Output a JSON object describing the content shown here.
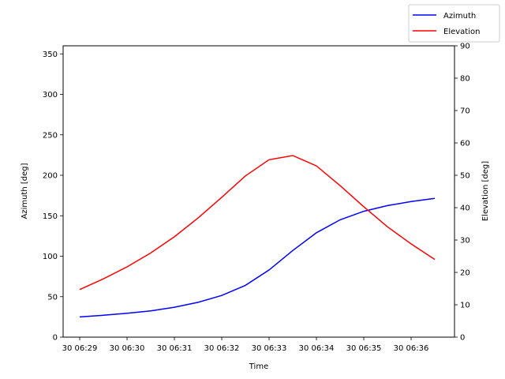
{
  "chart_data": {
    "type": "line",
    "xlabel": "Time",
    "ylabel": "Azimuth [deg]",
    "y2label": "Elevation [deg]",
    "x": [
      "06:29:00",
      "06:29:30",
      "06:30:00",
      "06:30:30",
      "06:31:00",
      "06:31:30",
      "06:32:00",
      "06:32:30",
      "06:33:00",
      "06:33:30",
      "06:34:00",
      "06:34:30",
      "06:35:00",
      "06:35:30",
      "06:36:00",
      "06:36:30"
    ],
    "x_tick_labels": [
      "30 06:29",
      "30 06:30",
      "30 06:31",
      "30 06:32",
      "30 06:33",
      "30 06:34",
      "30 06:35",
      "30 06:36"
    ],
    "ylim": [
      0,
      360
    ],
    "y_ticks": [
      0,
      50,
      100,
      150,
      200,
      250,
      300,
      350
    ],
    "y2lim": [
      0,
      90
    ],
    "y2_ticks": [
      0,
      10,
      20,
      30,
      40,
      50,
      60,
      70,
      80,
      90
    ],
    "grid": false,
    "legend_position": "top-right",
    "series": [
      {
        "name": "Azimuth",
        "axis": "left",
        "color": "#0000ff",
        "values": [
          25,
          27,
          29.5,
          32.5,
          37,
          43,
          51.5,
          64,
          83,
          107,
          129,
          145,
          155.5,
          162.5,
          167.5,
          171.5
        ]
      },
      {
        "name": "Elevation",
        "axis": "right",
        "color": "#ff0000",
        "values": [
          14.7,
          18,
          21.7,
          26,
          31,
          36.8,
          43.2,
          49.8,
          54.8,
          56.1,
          52.9,
          46.8,
          40.3,
          34.1,
          28.8,
          24
        ]
      }
    ]
  }
}
